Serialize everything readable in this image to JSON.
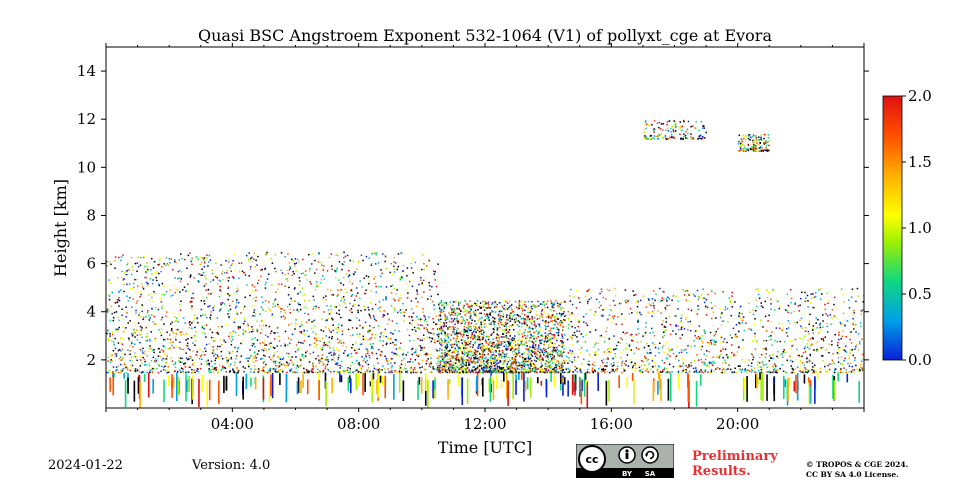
{
  "chart_data": {
    "type": "heatmap",
    "title": "Quasi BSC Angstroem Exponent 532-1064 (V1) of pollyxt_cge at Evora",
    "xlabel": "Time [UTC]",
    "ylabel": "Height [km]",
    "xlim_hours": [
      0,
      24
    ],
    "ylim_km": [
      0,
      15
    ],
    "x_ticks": [
      {
        "value": 4,
        "label": "04:00"
      },
      {
        "value": 8,
        "label": "08:00"
      },
      {
        "value": 12,
        "label": "12:00"
      },
      {
        "value": 16,
        "label": "16:00"
      },
      {
        "value": 20,
        "label": "20:00"
      }
    ],
    "y_ticks": [
      {
        "value": 2,
        "label": "2"
      },
      {
        "value": 4,
        "label": "4"
      },
      {
        "value": 6,
        "label": "6"
      },
      {
        "value": 8,
        "label": "8"
      },
      {
        "value": 10,
        "label": "10"
      },
      {
        "value": 12,
        "label": "12"
      },
      {
        "value": 14,
        "label": "14"
      }
    ],
    "colorbar": {
      "range": [
        0.0,
        2.0
      ],
      "ticks": [
        {
          "value": 0.0,
          "label": "0.0"
        },
        {
          "value": 0.5,
          "label": "0.5"
        },
        {
          "value": 1.0,
          "label": "1.0"
        },
        {
          "value": 1.5,
          "label": "1.5"
        },
        {
          "value": 2.0,
          "label": "2.0"
        }
      ],
      "colors": [
        "#0a20d8",
        "#00a0e8",
        "#10d880",
        "#a0f000",
        "#ffff00",
        "#ffb000",
        "#ff5000",
        "#e01010"
      ]
    },
    "grid": false,
    "signal_regions": [
      {
        "t0": 0.0,
        "t1": 24.0,
        "h0": 0.0,
        "h1": 1.5,
        "density": "dense-columns"
      },
      {
        "t0": 0.0,
        "t1": 10.5,
        "h0": 1.5,
        "h1": 6.5,
        "density": "high"
      },
      {
        "t0": 10.5,
        "t1": 14.5,
        "h0": 1.5,
        "h1": 4.5,
        "density": "high"
      },
      {
        "t0": 14.5,
        "t1": 24.0,
        "h0": 1.5,
        "h1": 5.0,
        "density": "medium"
      },
      {
        "t0": 17.0,
        "t1": 19.0,
        "h0": 11.2,
        "h1": 12.0,
        "density": "cloud"
      },
      {
        "t0": 20.0,
        "t1": 21.0,
        "h0": 10.7,
        "h1": 11.4,
        "density": "cloud"
      }
    ]
  },
  "footer": {
    "date": "2024-01-22",
    "version": "Version: 4.0",
    "license_left": "BY",
    "license_right": "SA",
    "license_cc": "cc",
    "preliminary_line1": "Preliminary",
    "preliminary_line2": "Results.",
    "copyright_line1": "© TROPOS & CGE 2024.",
    "copyright_line2": "CC BY SA 4.0 License."
  }
}
